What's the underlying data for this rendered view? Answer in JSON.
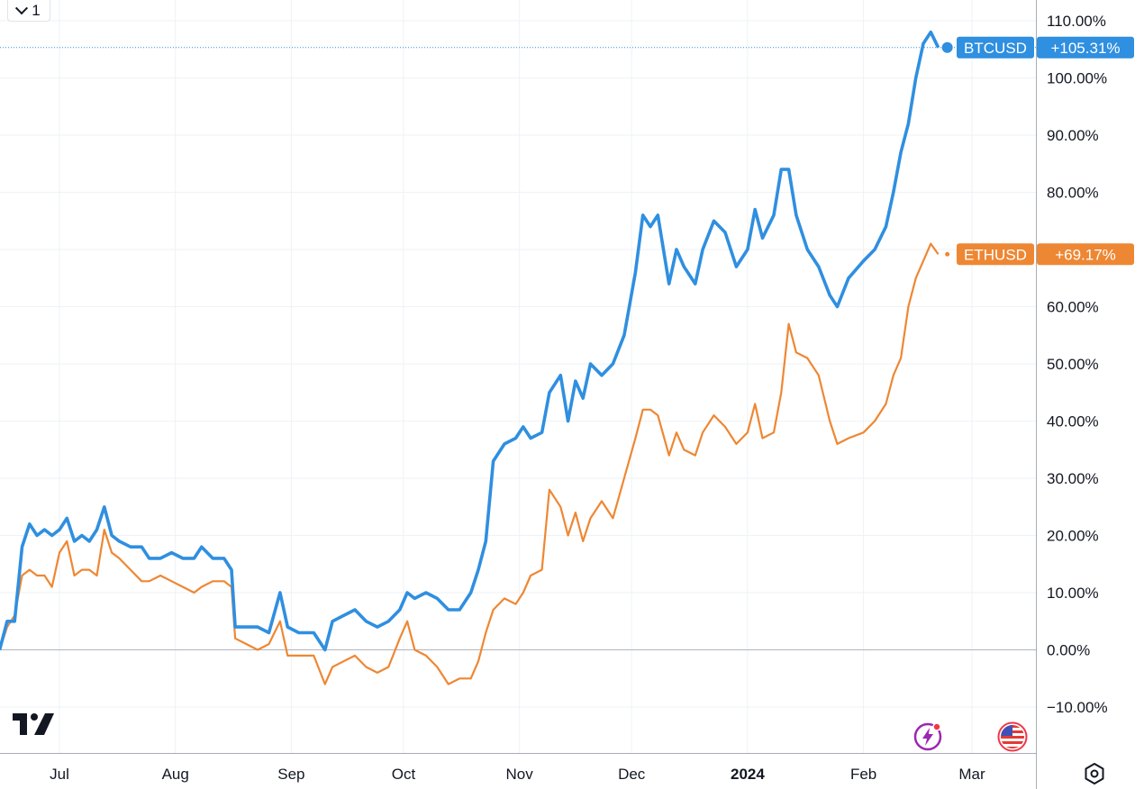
{
  "toolbar": {
    "interval_label": "1"
  },
  "colors": {
    "btc": "#2f8fe0",
    "eth": "#ee8733",
    "grid": "#eef2f6",
    "axis_line": "#a9adb6",
    "zero_line": "#b2b5be"
  },
  "icons": {
    "logo": "tradingview-logo",
    "settings": "settings-icon",
    "bolt": "lightning-icon",
    "flag": "us-flag-icon"
  },
  "chart_data": {
    "type": "line",
    "y_unit": "%",
    "ylim": [
      -20,
      112
    ],
    "y_ticks": [
      "110.00%",
      "100.00%",
      "90.00%",
      "80.00%",
      "70.00%",
      "60.00%",
      "50.00%",
      "40.00%",
      "30.00%",
      "20.00%",
      "10.00%",
      "0.00%",
      "−10.00%"
    ],
    "y_tick_values": [
      110,
      100,
      90,
      80,
      70,
      60,
      50,
      40,
      30,
      20,
      10,
      0,
      -10
    ],
    "x_ticks": [
      {
        "label": "Jul",
        "date": "2023-07-01",
        "bold": false
      },
      {
        "label": "Aug",
        "date": "2023-08-01",
        "bold": false
      },
      {
        "label": "Sep",
        "date": "2023-09-01",
        "bold": false
      },
      {
        "label": "Oct",
        "date": "2023-10-01",
        "bold": false
      },
      {
        "label": "Nov",
        "date": "2023-11-01",
        "bold": false
      },
      {
        "label": "Dec",
        "date": "2023-12-01",
        "bold": false
      },
      {
        "label": "2024",
        "date": "2024-01-01",
        "bold": true
      },
      {
        "label": "Feb",
        "date": "2024-02-01",
        "bold": false
      },
      {
        "label": "Mar",
        "date": "2024-03-01",
        "bold": false
      }
    ],
    "grid": true,
    "series": [
      {
        "name": "BTCUSD",
        "last_label": "+105.31%",
        "last_value": 105.31,
        "points": [
          [
            "2023-06-15",
            0
          ],
          [
            "2023-06-17",
            5
          ],
          [
            "2023-06-19",
            5
          ],
          [
            "2023-06-21",
            18
          ],
          [
            "2023-06-23",
            22
          ],
          [
            "2023-06-25",
            20
          ],
          [
            "2023-06-27",
            21
          ],
          [
            "2023-06-29",
            20
          ],
          [
            "2023-07-01",
            21
          ],
          [
            "2023-07-03",
            23
          ],
          [
            "2023-07-05",
            19
          ],
          [
            "2023-07-07",
            20
          ],
          [
            "2023-07-09",
            19
          ],
          [
            "2023-07-11",
            21
          ],
          [
            "2023-07-13",
            25
          ],
          [
            "2023-07-15",
            20
          ],
          [
            "2023-07-17",
            19
          ],
          [
            "2023-07-20",
            18
          ],
          [
            "2023-07-23",
            18
          ],
          [
            "2023-07-25",
            16
          ],
          [
            "2023-07-28",
            16
          ],
          [
            "2023-07-31",
            17
          ],
          [
            "2023-08-03",
            16
          ],
          [
            "2023-08-06",
            16
          ],
          [
            "2023-08-08",
            18
          ],
          [
            "2023-08-11",
            16
          ],
          [
            "2023-08-14",
            16
          ],
          [
            "2023-08-16",
            14
          ],
          [
            "2023-08-17",
            4
          ],
          [
            "2023-08-20",
            4
          ],
          [
            "2023-08-23",
            4
          ],
          [
            "2023-08-26",
            3
          ],
          [
            "2023-08-29",
            10
          ],
          [
            "2023-08-31",
            4
          ],
          [
            "2023-09-03",
            3
          ],
          [
            "2023-09-07",
            3
          ],
          [
            "2023-09-10",
            0
          ],
          [
            "2023-09-12",
            5
          ],
          [
            "2023-09-15",
            6
          ],
          [
            "2023-09-18",
            7
          ],
          [
            "2023-09-21",
            5
          ],
          [
            "2023-09-24",
            4
          ],
          [
            "2023-09-27",
            5
          ],
          [
            "2023-09-30",
            7
          ],
          [
            "2023-10-02",
            10
          ],
          [
            "2023-10-04",
            9
          ],
          [
            "2023-10-07",
            10
          ],
          [
            "2023-10-10",
            9
          ],
          [
            "2023-10-13",
            7
          ],
          [
            "2023-10-16",
            7
          ],
          [
            "2023-10-19",
            10
          ],
          [
            "2023-10-21",
            14
          ],
          [
            "2023-10-23",
            19
          ],
          [
            "2023-10-25",
            33
          ],
          [
            "2023-10-28",
            36
          ],
          [
            "2023-10-31",
            37
          ],
          [
            "2023-11-02",
            39
          ],
          [
            "2023-11-04",
            37
          ],
          [
            "2023-11-07",
            38
          ],
          [
            "2023-11-09",
            45
          ],
          [
            "2023-11-12",
            48
          ],
          [
            "2023-11-14",
            40
          ],
          [
            "2023-11-16",
            47
          ],
          [
            "2023-11-18",
            44
          ],
          [
            "2023-11-20",
            50
          ],
          [
            "2023-11-23",
            48
          ],
          [
            "2023-11-26",
            50
          ],
          [
            "2023-11-29",
            55
          ],
          [
            "2023-12-02",
            66
          ],
          [
            "2023-12-04",
            76
          ],
          [
            "2023-12-06",
            74
          ],
          [
            "2023-12-08",
            76
          ],
          [
            "2023-12-11",
            64
          ],
          [
            "2023-12-13",
            70
          ],
          [
            "2023-12-15",
            67
          ],
          [
            "2023-12-18",
            64
          ],
          [
            "2023-12-20",
            70
          ],
          [
            "2023-12-23",
            75
          ],
          [
            "2023-12-26",
            73
          ],
          [
            "2023-12-29",
            67
          ],
          [
            "2024-01-01",
            70
          ],
          [
            "2024-01-03",
            77
          ],
          [
            "2024-01-05",
            72
          ],
          [
            "2024-01-08",
            76
          ],
          [
            "2024-01-10",
            84
          ],
          [
            "2024-01-12",
            84
          ],
          [
            "2024-01-14",
            76
          ],
          [
            "2024-01-17",
            70
          ],
          [
            "2024-01-20",
            67
          ],
          [
            "2024-01-23",
            62
          ],
          [
            "2024-01-25",
            60
          ],
          [
            "2024-01-28",
            65
          ],
          [
            "2024-02-01",
            68
          ],
          [
            "2024-02-04",
            70
          ],
          [
            "2024-02-07",
            74
          ],
          [
            "2024-02-09",
            80
          ],
          [
            "2024-02-11",
            87
          ],
          [
            "2024-02-13",
            92
          ],
          [
            "2024-02-15",
            100
          ],
          [
            "2024-02-17",
            106
          ],
          [
            "2024-02-19",
            108
          ],
          [
            "2024-02-21",
            105.31
          ]
        ]
      },
      {
        "name": "ETHUSD",
        "last_label": "+69.17%",
        "last_value": 69.17,
        "points": [
          [
            "2023-06-15",
            0
          ],
          [
            "2023-06-17",
            4
          ],
          [
            "2023-06-19",
            6
          ],
          [
            "2023-06-21",
            13
          ],
          [
            "2023-06-23",
            14
          ],
          [
            "2023-06-25",
            13
          ],
          [
            "2023-06-27",
            13
          ],
          [
            "2023-06-29",
            11
          ],
          [
            "2023-07-01",
            17
          ],
          [
            "2023-07-03",
            19
          ],
          [
            "2023-07-05",
            13
          ],
          [
            "2023-07-07",
            14
          ],
          [
            "2023-07-09",
            14
          ],
          [
            "2023-07-11",
            13
          ],
          [
            "2023-07-13",
            21
          ],
          [
            "2023-07-15",
            17
          ],
          [
            "2023-07-17",
            16
          ],
          [
            "2023-07-20",
            14
          ],
          [
            "2023-07-23",
            12
          ],
          [
            "2023-07-25",
            12
          ],
          [
            "2023-07-28",
            13
          ],
          [
            "2023-07-31",
            12
          ],
          [
            "2023-08-03",
            11
          ],
          [
            "2023-08-06",
            10
          ],
          [
            "2023-08-08",
            11
          ],
          [
            "2023-08-11",
            12
          ],
          [
            "2023-08-14",
            12
          ],
          [
            "2023-08-16",
            11
          ],
          [
            "2023-08-17",
            2
          ],
          [
            "2023-08-20",
            1
          ],
          [
            "2023-08-23",
            0
          ],
          [
            "2023-08-26",
            1
          ],
          [
            "2023-08-29",
            5
          ],
          [
            "2023-08-31",
            -1
          ],
          [
            "2023-09-03",
            -1
          ],
          [
            "2023-09-07",
            -1
          ],
          [
            "2023-09-10",
            -6
          ],
          [
            "2023-09-12",
            -3
          ],
          [
            "2023-09-15",
            -2
          ],
          [
            "2023-09-18",
            -1
          ],
          [
            "2023-09-21",
            -3
          ],
          [
            "2023-09-24",
            -4
          ],
          [
            "2023-09-27",
            -3
          ],
          [
            "2023-09-30",
            2
          ],
          [
            "2023-10-02",
            5
          ],
          [
            "2023-10-04",
            0
          ],
          [
            "2023-10-07",
            -1
          ],
          [
            "2023-10-10",
            -3
          ],
          [
            "2023-10-13",
            -6
          ],
          [
            "2023-10-16",
            -5
          ],
          [
            "2023-10-19",
            -5
          ],
          [
            "2023-10-21",
            -2
          ],
          [
            "2023-10-23",
            3
          ],
          [
            "2023-10-25",
            7
          ],
          [
            "2023-10-28",
            9
          ],
          [
            "2023-10-31",
            8
          ],
          [
            "2023-11-02",
            10
          ],
          [
            "2023-11-04",
            13
          ],
          [
            "2023-11-07",
            14
          ],
          [
            "2023-11-09",
            28
          ],
          [
            "2023-11-12",
            25
          ],
          [
            "2023-11-14",
            20
          ],
          [
            "2023-11-16",
            24
          ],
          [
            "2023-11-18",
            19
          ],
          [
            "2023-11-20",
            23
          ],
          [
            "2023-11-23",
            26
          ],
          [
            "2023-11-26",
            23
          ],
          [
            "2023-11-29",
            30
          ],
          [
            "2023-12-02",
            37
          ],
          [
            "2023-12-04",
            42
          ],
          [
            "2023-12-06",
            42
          ],
          [
            "2023-12-08",
            41
          ],
          [
            "2023-12-11",
            34
          ],
          [
            "2023-12-13",
            38
          ],
          [
            "2023-12-15",
            35
          ],
          [
            "2023-12-18",
            34
          ],
          [
            "2023-12-20",
            38
          ],
          [
            "2023-12-23",
            41
          ],
          [
            "2023-12-26",
            39
          ],
          [
            "2023-12-29",
            36
          ],
          [
            "2024-01-01",
            38
          ],
          [
            "2024-01-03",
            43
          ],
          [
            "2024-01-05",
            37
          ],
          [
            "2024-01-08",
            38
          ],
          [
            "2024-01-10",
            45
          ],
          [
            "2024-01-12",
            57
          ],
          [
            "2024-01-14",
            52
          ],
          [
            "2024-01-17",
            51
          ],
          [
            "2024-01-20",
            48
          ],
          [
            "2024-01-23",
            40
          ],
          [
            "2024-01-25",
            36
          ],
          [
            "2024-01-28",
            37
          ],
          [
            "2024-02-01",
            38
          ],
          [
            "2024-02-04",
            40
          ],
          [
            "2024-02-07",
            43
          ],
          [
            "2024-02-09",
            48
          ],
          [
            "2024-02-11",
            51
          ],
          [
            "2024-02-13",
            60
          ],
          [
            "2024-02-15",
            65
          ],
          [
            "2024-02-17",
            68
          ],
          [
            "2024-02-19",
            71
          ],
          [
            "2024-02-21",
            69.17
          ]
        ]
      }
    ]
  }
}
